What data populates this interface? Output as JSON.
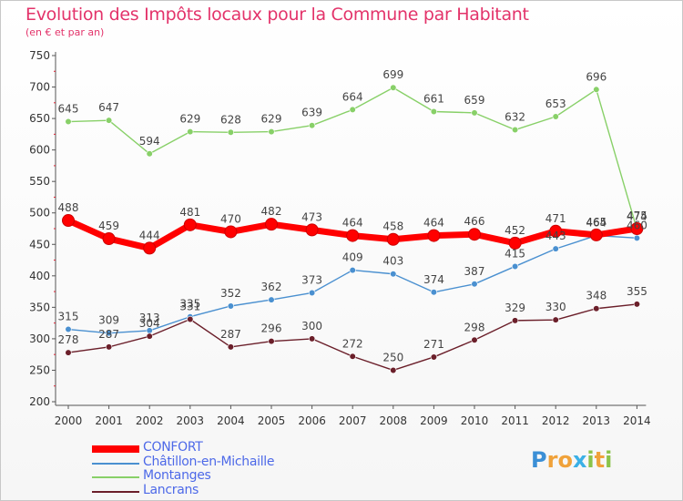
{
  "title": "Evolution des Impôts locaux pour la Commune par Habitant",
  "subtitle": "(en € et par an)",
  "chart_data": {
    "type": "line",
    "x": [
      "2000",
      "2001",
      "2002",
      "2003",
      "2004",
      "2005",
      "2006",
      "2007",
      "2008",
      "2009",
      "2010",
      "2011",
      "2012",
      "2013",
      "2014"
    ],
    "ylim": [
      200,
      750
    ],
    "yticks": [
      200,
      250,
      300,
      350,
      400,
      450,
      500,
      550,
      600,
      650,
      700,
      750
    ],
    "grid": false,
    "legend_position": "bottom-left",
    "series": [
      {
        "name": "CONFORT",
        "color": "#ff0000",
        "values": [
          488,
          459,
          444,
          481,
          470,
          482,
          473,
          464,
          458,
          464,
          466,
          452,
          471,
          465,
          475
        ],
        "labels": [
          "488",
          "459",
          "444",
          "481",
          "470",
          "482",
          "473",
          "464",
          "458",
          "464",
          "466",
          "452",
          "471",
          "465",
          "475"
        ]
      },
      {
        "name": "Châtillon-en-Michaille",
        "color": "#4a90d0",
        "values": [
          315,
          309,
          313,
          335,
          352,
          362,
          373,
          409,
          403,
          374,
          387,
          415,
          443,
          464,
          460
        ],
        "labels": [
          "315",
          "309",
          "313",
          "335",
          "352",
          "362",
          "373",
          "409",
          "403",
          "374",
          "387",
          "415",
          "443",
          "464",
          "460"
        ]
      },
      {
        "name": "Montanges",
        "color": "#88d068",
        "values": [
          645,
          647,
          594,
          629,
          628,
          629,
          639,
          664,
          699,
          661,
          659,
          632,
          653,
          696,
          474
        ],
        "labels": [
          "645",
          "647",
          "594",
          "629",
          "628",
          "629",
          "639",
          "664",
          "699",
          "661",
          "659",
          "632",
          "653",
          "696",
          "474"
        ]
      },
      {
        "name": "Lancrans",
        "color": "#6b1f2a",
        "values": [
          278,
          287,
          304,
          331,
          287,
          296,
          300,
          272,
          250,
          271,
          298,
          329,
          330,
          348,
          355
        ],
        "labels": [
          "278",
          "287",
          "304",
          "331",
          "287",
          "296",
          "300",
          "272",
          "250",
          "271",
          "298",
          "329",
          "330",
          "348",
          "355"
        ]
      }
    ]
  },
  "logo": {
    "letters": [
      "P",
      "r",
      "o",
      "x",
      "i",
      "t",
      "i"
    ],
    "colors": [
      "#3b8fd6",
      "#f0a23a",
      "#f0a23a",
      "#3bb0e6",
      "#8bc34a",
      "#f0a23a",
      "#8bc34a"
    ]
  }
}
